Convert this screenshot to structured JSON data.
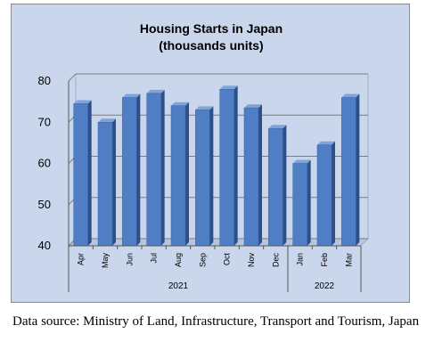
{
  "chart_data": {
    "type": "bar",
    "title_lines": [
      "Housing Starts in Japan",
      "(thousands units)"
    ],
    "categories": [
      "Apr",
      "May",
      "Jun",
      "Jul",
      "Aug",
      "Sep",
      "Oct",
      "Nov",
      "Dec",
      "Jan",
      "Feb",
      "Mar"
    ],
    "values": [
      74.5,
      70.0,
      76.0,
      77.0,
      74.0,
      73.0,
      78.0,
      73.5,
      68.5,
      60.0,
      64.5,
      76.0
    ],
    "year_groups": [
      {
        "label": "2021",
        "categories": [
          "Apr",
          "May",
          "Jun",
          "Jul",
          "Aug",
          "Sep",
          "Oct",
          "Nov",
          "Dec"
        ]
      },
      {
        "label": "2022",
        "categories": [
          "Jan",
          "Feb",
          "Mar"
        ]
      }
    ],
    "yticks": [
      40,
      50,
      60,
      70,
      80
    ],
    "ylim": [
      40,
      80
    ],
    "grid": true,
    "bar_color": "#4f7ec4",
    "bar_side_color": "#2c4f88",
    "bar_top_color": "#7ea4da",
    "background_color": "#c9d6ec"
  },
  "source_note": "Data source: Ministry of Land, Infrastructure, Transport and Tourism, Japan"
}
